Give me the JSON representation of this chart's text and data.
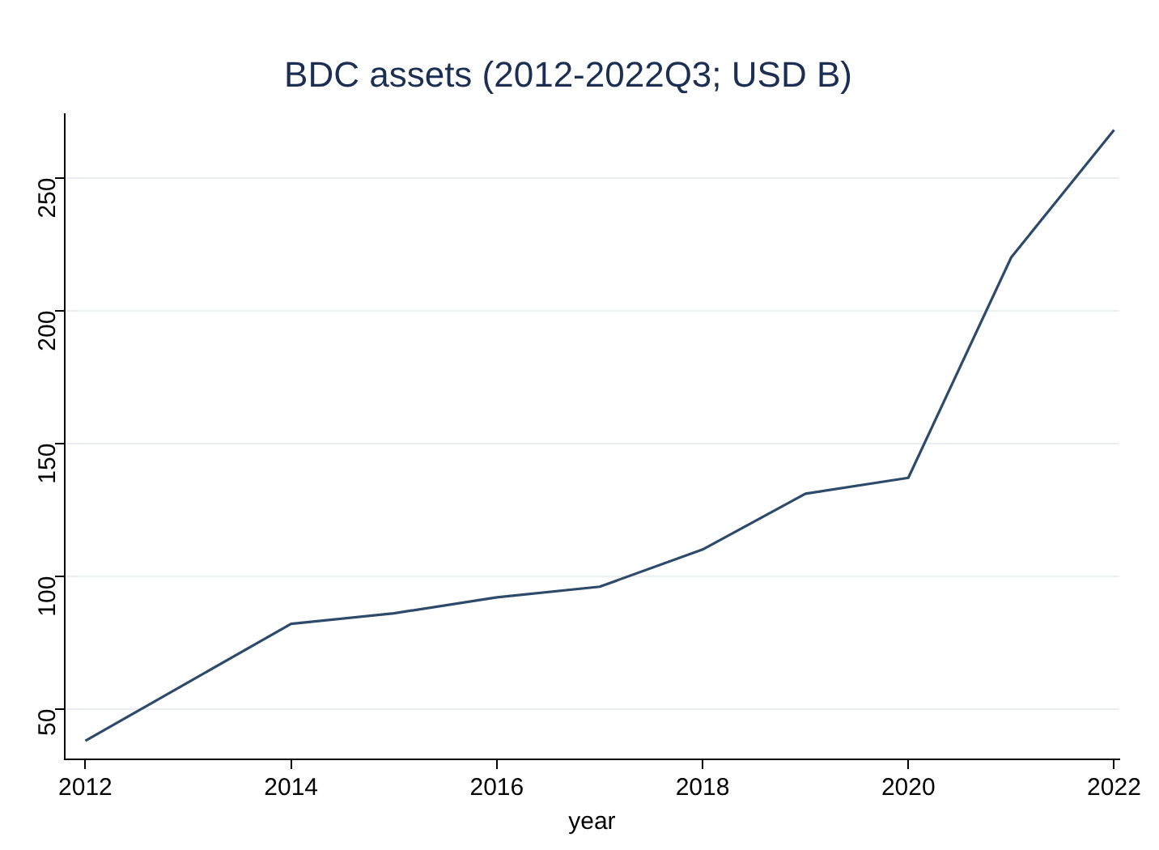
{
  "chart_data": {
    "type": "line",
    "title": "BDC assets (2012-2022Q3; USD B)",
    "xlabel": "year",
    "x": [
      2012,
      2013,
      2014,
      2015,
      2016,
      2017,
      2018,
      2019,
      2020,
      2021,
      2022
    ],
    "series": [
      {
        "color": "#2e4a6b",
        "values": [
          38,
          60,
          82,
          86,
          92,
          96,
          110,
          131,
          137,
          220,
          268
        ]
      }
    ],
    "xlim": [
      2011.8,
      2022.05
    ],
    "xticks": [
      2012,
      2014,
      2016,
      2018,
      2020,
      2022
    ],
    "ylim": [
      31,
      274
    ],
    "yticks": [
      50,
      100,
      150,
      200,
      250
    ],
    "grid": "y",
    "legend": false,
    "marker": "none",
    "line_style": "solid"
  }
}
